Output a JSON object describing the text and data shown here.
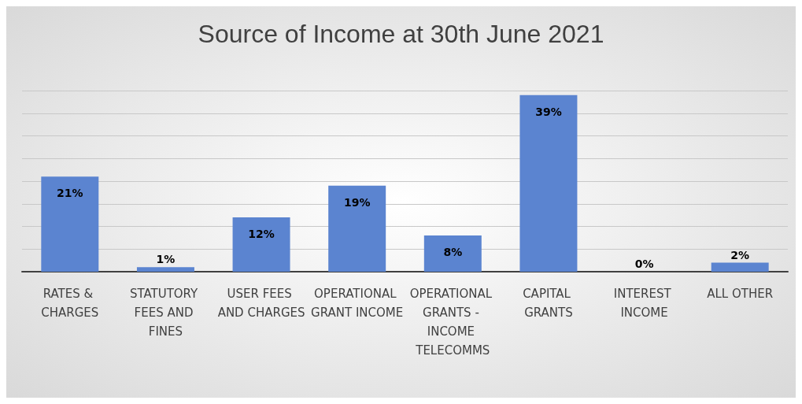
{
  "chart_data": {
    "type": "bar",
    "title": "Source of Income at 30th June 2021",
    "categories": [
      "RATES & CHARGES",
      "STATUTORY FEES AND FINES",
      "USER FEES AND CHARGES",
      "OPERATIONAL GRANT INCOME",
      "OPERATIONAL GRANTS - INCOME TELECOMMS",
      "CAPITAL GRANTS",
      "INTEREST INCOME",
      "ALL OTHER"
    ],
    "values": [
      21,
      1,
      12,
      19,
      8,
      39,
      0,
      2
    ],
    "value_labels": [
      "21%",
      "1%",
      "12%",
      "19%",
      "8%",
      "39%",
      "0%",
      "2%"
    ],
    "color": "#5b84d0",
    "ylim": [
      0,
      40
    ],
    "yticks": [
      {
        "value": 0,
        "label": null
      },
      {
        "value": 5,
        "label": null
      },
      {
        "value": 10,
        "label": null
      },
      {
        "value": 15,
        "label": null
      },
      {
        "value": 20,
        "label": null
      },
      {
        "value": 25,
        "label": null
      },
      {
        "value": 30,
        "label": null
      },
      {
        "value": 35,
        "label": null
      },
      {
        "value": 40,
        "label": null
      }
    ],
    "grid": "y",
    "tick_labels": "x"
  }
}
